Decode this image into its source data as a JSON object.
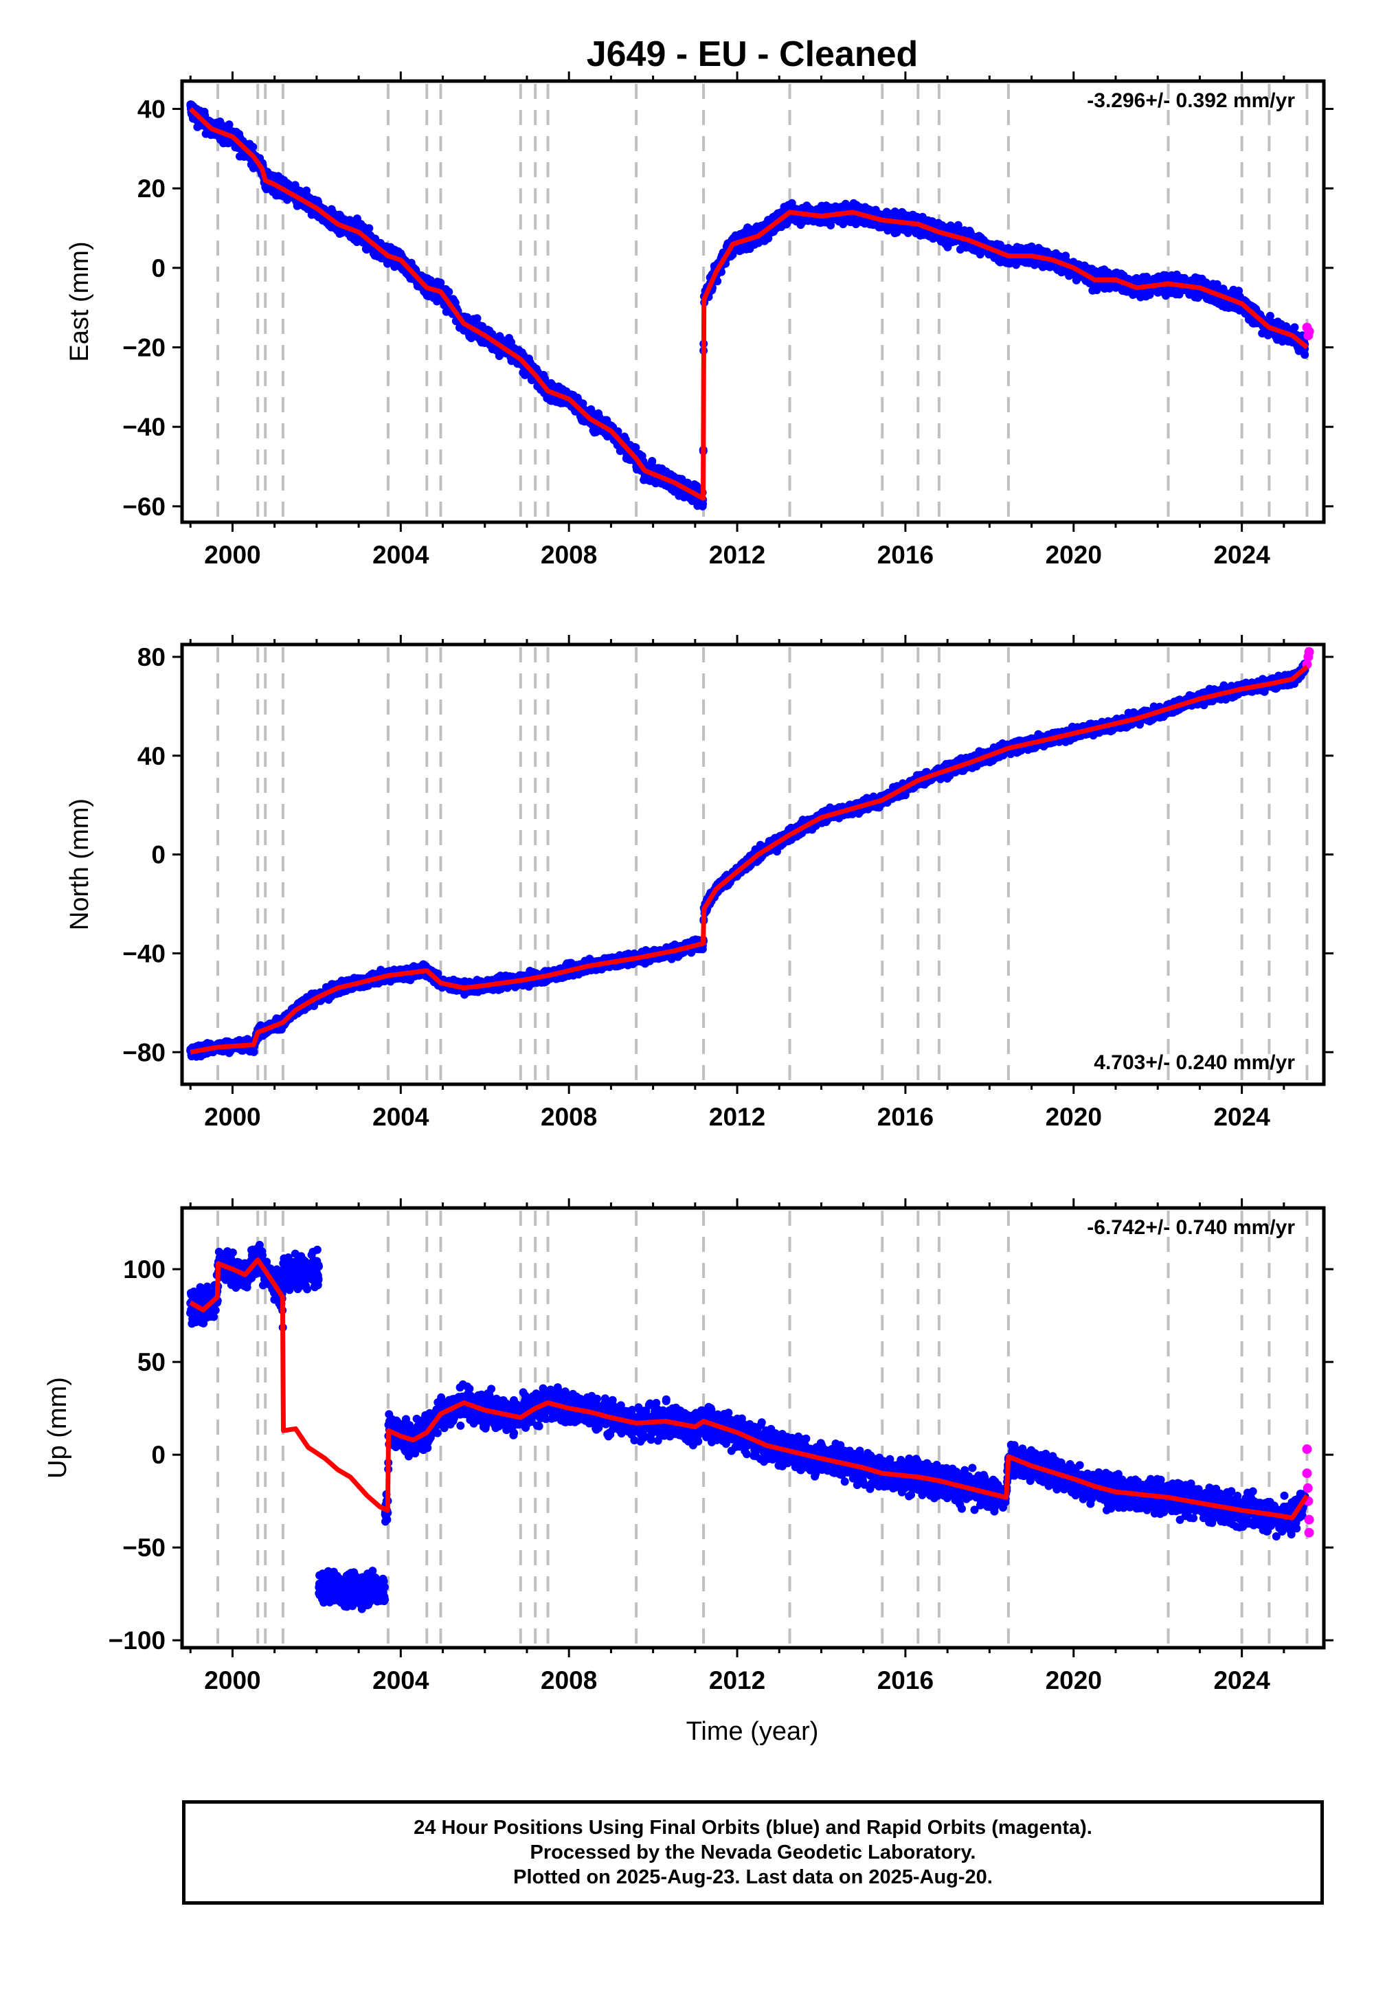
{
  "title": "J649  - EU - Cleaned",
  "xlabel": "Time (year)",
  "footer": {
    "line1": "24 Hour Positions Using Final Orbits (blue) and Rapid Orbits (magenta).",
    "line2": "Processed by the Nevada Geodetic Laboratory.",
    "line3": "Plotted on 2025-Aug-23. Last data on 2025-Aug-20."
  },
  "colors": {
    "final": "#0000ff",
    "rapid": "#ff00ff",
    "model": "#ff0000",
    "events": "#c0c0c0"
  },
  "chart_data": [
    {
      "type": "scatter",
      "component": "East",
      "ylabel": "East (mm)",
      "rate_label": "-3.296+/- 0.392 mm/yr",
      "rate_position": "top-right",
      "xlim": [
        1998.8,
        2025.95
      ],
      "ylim": [
        -64,
        47
      ],
      "xticks": [
        2000,
        2004,
        2008,
        2012,
        2016,
        2020,
        2024
      ],
      "yticks": [
        -60,
        -40,
        -20,
        0,
        20,
        40
      ],
      "event_lines": [
        1999.65,
        2000.6,
        2000.78,
        2001.2,
        2003.7,
        2004.62,
        2004.95,
        2006.85,
        2007.2,
        2007.5,
        2009.6,
        2011.2,
        2013.25,
        2015.45,
        2016.3,
        2016.8,
        2018.45,
        2022.25,
        2024.0,
        2024.65,
        2025.55
      ],
      "model_line": [
        [
          1999.0,
          40
        ],
        [
          1999.5,
          35
        ],
        [
          2000.0,
          33
        ],
        [
          2000.5,
          28
        ],
        [
          2000.7,
          25
        ],
        [
          2000.78,
          22
        ],
        [
          2001.0,
          21
        ],
        [
          2001.5,
          18
        ],
        [
          2002.0,
          15
        ],
        [
          2002.5,
          11
        ],
        [
          2003.0,
          9
        ],
        [
          2003.7,
          3
        ],
        [
          2004.0,
          2
        ],
        [
          2004.62,
          -5
        ],
        [
          2004.95,
          -6
        ],
        [
          2005.5,
          -14
        ],
        [
          2006.0,
          -17
        ],
        [
          2006.85,
          -23
        ],
        [
          2007.2,
          -27
        ],
        [
          2007.5,
          -31
        ],
        [
          2008.0,
          -33
        ],
        [
          2008.5,
          -38
        ],
        [
          2009.0,
          -41
        ],
        [
          2009.6,
          -48
        ],
        [
          2009.8,
          -51
        ],
        [
          2010.5,
          -54
        ],
        [
          2011.19,
          -58
        ],
        [
          2011.21,
          -8
        ],
        [
          2011.5,
          -1
        ],
        [
          2011.9,
          6
        ],
        [
          2012.5,
          8
        ],
        [
          2013.25,
          14
        ],
        [
          2014.0,
          13
        ],
        [
          2014.75,
          14
        ],
        [
          2015.45,
          12
        ],
        [
          2016.3,
          11
        ],
        [
          2016.8,
          9
        ],
        [
          2017.5,
          7
        ],
        [
          2018.45,
          3
        ],
        [
          2019.0,
          3
        ],
        [
          2019.5,
          2
        ],
        [
          2020.0,
          0
        ],
        [
          2020.5,
          -3
        ],
        [
          2021.0,
          -3
        ],
        [
          2021.5,
          -5
        ],
        [
          2022.25,
          -4
        ],
        [
          2023.0,
          -5
        ],
        [
          2024.0,
          -9
        ],
        [
          2024.65,
          -15
        ],
        [
          2025.2,
          -17
        ],
        [
          2025.55,
          -20
        ]
      ],
      "final_series": {
        "description": "daily positions",
        "start": 1999.0,
        "end": 2025.5,
        "segments": [
          [
            1999.0,
            42
          ],
          [
            2011.2,
            -60
          ],
          [
            2011.21,
            -8
          ],
          [
            2013.25,
            14
          ],
          [
            2025.5,
            -20
          ]
        ]
      },
      "rapid_points": [
        [
          2025.55,
          -15
        ],
        [
          2025.58,
          -17
        ],
        [
          2025.6,
          -16
        ]
      ]
    },
    {
      "type": "scatter",
      "component": "North",
      "ylabel": "North (mm)",
      "rate_label": "4.703+/- 0.240 mm/yr",
      "rate_position": "bottom-right",
      "xlim": [
        1998.8,
        2025.95
      ],
      "ylim": [
        -93,
        85
      ],
      "xticks": [
        2000,
        2004,
        2008,
        2012,
        2016,
        2020,
        2024
      ],
      "yticks": [
        -80,
        -40,
        0,
        40,
        80
      ],
      "event_lines": [
        1999.65,
        2000.6,
        2000.78,
        2001.2,
        2003.7,
        2004.62,
        2004.95,
        2006.85,
        2007.2,
        2007.5,
        2009.6,
        2011.2,
        2013.25,
        2015.45,
        2016.3,
        2016.8,
        2018.45,
        2022.25,
        2024.0,
        2024.65,
        2025.55
      ],
      "model_line": [
        [
          1999.0,
          -80
        ],
        [
          1999.65,
          -78
        ],
        [
          2000.5,
          -77
        ],
        [
          2000.6,
          -72
        ],
        [
          2001.2,
          -68
        ],
        [
          2001.5,
          -63
        ],
        [
          2002.0,
          -58
        ],
        [
          2002.5,
          -54
        ],
        [
          2003.0,
          -52
        ],
        [
          2003.7,
          -49
        ],
        [
          2004.62,
          -47
        ],
        [
          2004.95,
          -52
        ],
        [
          2005.5,
          -54
        ],
        [
          2006.0,
          -53
        ],
        [
          2006.85,
          -51
        ],
        [
          2007.5,
          -49
        ],
        [
          2008.0,
          -47
        ],
        [
          2008.5,
          -45
        ],
        [
          2009.6,
          -42
        ],
        [
          2010.5,
          -39
        ],
        [
          2011.19,
          -36
        ],
        [
          2011.21,
          -22
        ],
        [
          2011.5,
          -14
        ],
        [
          2012.0,
          -7
        ],
        [
          2012.5,
          0
        ],
        [
          2013.25,
          8
        ],
        [
          2014.0,
          15
        ],
        [
          2015.45,
          22
        ],
        [
          2016.3,
          30
        ],
        [
          2016.8,
          33
        ],
        [
          2017.5,
          37
        ],
        [
          2018.45,
          43
        ],
        [
          2019.5,
          47
        ],
        [
          2020.5,
          51
        ],
        [
          2021.5,
          55
        ],
        [
          2022.25,
          59
        ],
        [
          2023.0,
          63
        ],
        [
          2024.0,
          67
        ],
        [
          2024.65,
          69
        ],
        [
          2025.2,
          71
        ],
        [
          2025.55,
          76
        ]
      ],
      "final_series": {
        "description": "daily positions",
        "start": 1999.0,
        "end": 2025.5,
        "segments": [
          [
            1999.0,
            -80
          ],
          [
            2011.2,
            -36
          ],
          [
            2011.21,
            -22
          ],
          [
            2025.5,
            76
          ]
        ]
      },
      "rapid_points": [
        [
          2025.55,
          77
        ],
        [
          2025.58,
          80
        ],
        [
          2025.6,
          82
        ]
      ]
    },
    {
      "type": "scatter",
      "component": "Up",
      "ylabel": "Up (mm)",
      "rate_label": "-6.742+/- 0.740 mm/yr",
      "rate_position": "top-right",
      "xlim": [
        1998.8,
        2025.95
      ],
      "ylim": [
        -104,
        133
      ],
      "xticks": [
        2000,
        2004,
        2008,
        2012,
        2016,
        2020,
        2024
      ],
      "yticks": [
        -100,
        -50,
        0,
        50,
        100
      ],
      "event_lines": [
        1999.65,
        2000.6,
        2000.78,
        2001.2,
        2003.7,
        2004.62,
        2004.95,
        2006.85,
        2007.2,
        2007.5,
        2009.6,
        2011.2,
        2013.25,
        2015.45,
        2016.3,
        2016.8,
        2018.45,
        2022.25,
        2024.0,
        2024.65,
        2025.55
      ],
      "model_line": [
        [
          1999.0,
          82
        ],
        [
          1999.3,
          78
        ],
        [
          1999.64,
          85
        ],
        [
          1999.66,
          103
        ],
        [
          2000.0,
          100
        ],
        [
          2000.3,
          97
        ],
        [
          2000.6,
          105
        ],
        [
          2000.9,
          95
        ],
        [
          2001.19,
          85
        ],
        [
          2001.21,
          13
        ],
        [
          2001.5,
          14
        ],
        [
          2001.8,
          4
        ],
        [
          2002.2,
          -2
        ],
        [
          2002.5,
          -8
        ],
        [
          2002.8,
          -12
        ],
        [
          2003.2,
          -22
        ],
        [
          2003.5,
          -28
        ],
        [
          2003.69,
          -30
        ],
        [
          2003.71,
          13
        ],
        [
          2004.0,
          10
        ],
        [
          2004.3,
          8
        ],
        [
          2004.62,
          12
        ],
        [
          2004.95,
          22
        ],
        [
          2005.5,
          28
        ],
        [
          2006.0,
          24
        ],
        [
          2006.85,
          20
        ],
        [
          2007.2,
          25
        ],
        [
          2007.5,
          28
        ],
        [
          2008.0,
          25
        ],
        [
          2008.5,
          23
        ],
        [
          2009.0,
          20
        ],
        [
          2009.6,
          17
        ],
        [
          2010.3,
          18
        ],
        [
          2011.0,
          15
        ],
        [
          2011.2,
          18
        ],
        [
          2012.0,
          12
        ],
        [
          2012.7,
          5
        ],
        [
          2013.25,
          2
        ],
        [
          2014.0,
          -2
        ],
        [
          2015.0,
          -7
        ],
        [
          2015.45,
          -10
        ],
        [
          2016.3,
          -12
        ],
        [
          2016.8,
          -14
        ],
        [
          2017.5,
          -18
        ],
        [
          2018.4,
          -23
        ],
        [
          2018.45,
          -1
        ],
        [
          2019.0,
          -6
        ],
        [
          2020.0,
          -13
        ],
        [
          2020.5,
          -17
        ],
        [
          2021.0,
          -20
        ],
        [
          2022.25,
          -23
        ],
        [
          2023.0,
          -26
        ],
        [
          2024.0,
          -30
        ],
        [
          2024.65,
          -32
        ],
        [
          2025.2,
          -34
        ],
        [
          2025.55,
          -22
        ]
      ],
      "final_series": {
        "description": "daily positions",
        "start": 1999.0,
        "end": 2025.5,
        "segments": [
          [
            1999.0,
            82
          ],
          [
            2001.9,
            100
          ],
          [
            2002.1,
            -80
          ],
          [
            2003.6,
            -80
          ],
          [
            2003.71,
            13
          ],
          [
            2007.5,
            28
          ],
          [
            2025.5,
            -30
          ]
        ]
      },
      "rapid_points": [
        [
          2025.55,
          3
        ],
        [
          2025.55,
          -10
        ],
        [
          2025.57,
          -18
        ],
        [
          2025.58,
          -25
        ],
        [
          2025.6,
          -35
        ],
        [
          2025.6,
          -42
        ]
      ]
    }
  ]
}
